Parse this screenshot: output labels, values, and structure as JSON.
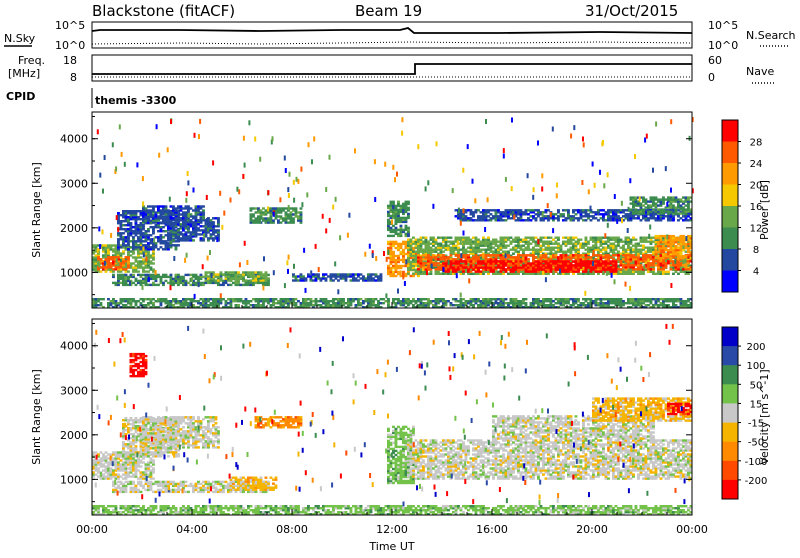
{
  "header": {
    "station": "Blackstone (fitACF)",
    "beam": "Beam 19",
    "date": "31/Oct/2015"
  },
  "left_labels": {
    "nsky": "N.Sky",
    "freq": "Freq.",
    "mhz": "[MHz]",
    "cpid": "CPID"
  },
  "right_labels": {
    "nsearch": "N.Search",
    "nave": "Nave"
  },
  "noise_axis": {
    "left_ticks": [
      "10^5",
      "10^0"
    ],
    "right_ticks": [
      "10^5",
      "10^0"
    ]
  },
  "freq_axis": {
    "left_ticks": [
      "18",
      "8"
    ],
    "right_ticks": [
      "60",
      "0"
    ]
  },
  "cpid_text": "themis -3300",
  "colors": {
    "power": [
      "#0000ff",
      "#2348a0",
      "#3c8c50",
      "#69a84a",
      "#f5c800",
      "#ff9a00",
      "#ff5a00",
      "#ff0000"
    ],
    "velocity": [
      "#0000c8",
      "#2a4aa8",
      "#3c8c50",
      "#73c24a",
      "#c8c8c8",
      "#f5b400",
      "#ff8a00",
      "#ff4a00",
      "#ff0000"
    ]
  },
  "chart_data": [
    {
      "type": "heatmap",
      "name": "power",
      "ylabel": "Slant Range [km]",
      "yticks": [
        "1000",
        "2000",
        "3000",
        "4000"
      ],
      "ylim": [
        200,
        4600
      ],
      "colorbar_label": "Power [dB]",
      "colorbar_ticks": [
        "4",
        "8",
        "12",
        "16",
        "20",
        "24",
        "28"
      ],
      "colorbar_range": [
        0,
        32
      ],
      "regions": [
        {
          "t0": 0.0,
          "t1": 2.5,
          "r0": 1000,
          "r1": 1600,
          "level": 3
        },
        {
          "t0": 0.2,
          "t1": 1.5,
          "r0": 1050,
          "r1": 1350,
          "level": 6
        },
        {
          "t0": 1.0,
          "t1": 3.5,
          "r0": 1500,
          "r1": 2400,
          "level": 1
        },
        {
          "t0": 2.0,
          "t1": 4.5,
          "r0": 2100,
          "r1": 2500,
          "level": 1
        },
        {
          "t0": 3.0,
          "t1": 5.0,
          "r0": 1700,
          "r1": 2200,
          "level": 1
        },
        {
          "t0": 0.8,
          "t1": 7.0,
          "r0": 700,
          "r1": 950,
          "level": 2
        },
        {
          "t0": 4.5,
          "t1": 7.0,
          "r0": 800,
          "r1": 1000,
          "level": 3
        },
        {
          "t0": 6.3,
          "t1": 8.3,
          "r0": 2100,
          "r1": 2450,
          "level": 2
        },
        {
          "t0": 8.0,
          "t1": 11.5,
          "r0": 800,
          "r1": 950,
          "level": 1
        },
        {
          "t0": 11.8,
          "t1": 13.0,
          "r0": 900,
          "r1": 1700,
          "level": 5
        },
        {
          "t0": 11.8,
          "t1": 12.6,
          "r0": 1800,
          "r1": 2600,
          "level": 2
        },
        {
          "t0": 12.6,
          "t1": 24.0,
          "r0": 950,
          "r1": 1800,
          "level": 3
        },
        {
          "t0": 13.0,
          "t1": 24.0,
          "r0": 1050,
          "r1": 1400,
          "level": 6
        },
        {
          "t0": 14.0,
          "t1": 21.0,
          "r0": 1000,
          "r1": 1250,
          "level": 7
        },
        {
          "t0": 14.5,
          "t1": 24.0,
          "r0": 2150,
          "r1": 2400,
          "level": 1
        },
        {
          "t0": 21.5,
          "t1": 24.0,
          "r0": 2300,
          "r1": 2700,
          "level": 2
        },
        {
          "t0": 22.5,
          "t1": 24.0,
          "r0": 1300,
          "r1": 1800,
          "level": 5
        },
        {
          "t0": 0.0,
          "t1": 24.0,
          "r0": 200,
          "r1": 420,
          "level": 2
        }
      ]
    },
    {
      "type": "heatmap",
      "name": "velocity",
      "ylabel": "Slant Range [km]",
      "yticks": [
        "1000",
        "2000",
        "3000",
        "4000"
      ],
      "ylim": [
        200,
        4600
      ],
      "colorbar_label": "Velocity [m s^-1]",
      "colorbar_ticks": [
        "200",
        "100",
        "50",
        "15",
        "-15",
        "-50",
        "-100",
        "-200"
      ],
      "regions": [
        {
          "t0": 0.0,
          "t1": 2.5,
          "r0": 1000,
          "r1": 1600,
          "level": 4
        },
        {
          "t0": 1.2,
          "t1": 3.5,
          "r0": 1500,
          "r1": 2400,
          "level": 4
        },
        {
          "t0": 2.0,
          "t1": 5.0,
          "r0": 1700,
          "r1": 2400,
          "level": 4
        },
        {
          "t0": 1.5,
          "t1": 2.2,
          "r0": 3300,
          "r1": 3800,
          "level": 8
        },
        {
          "t0": 0.8,
          "t1": 7.0,
          "r0": 700,
          "r1": 950,
          "level": 4
        },
        {
          "t0": 5.5,
          "t1": 7.3,
          "r0": 750,
          "r1": 1050,
          "level": 5
        },
        {
          "t0": 6.5,
          "t1": 8.3,
          "r0": 2150,
          "r1": 2400,
          "level": 6
        },
        {
          "t0": 11.8,
          "t1": 12.8,
          "r0": 900,
          "r1": 2200,
          "level": 3
        },
        {
          "t0": 12.6,
          "t1": 24.0,
          "r0": 1000,
          "r1": 1900,
          "level": 4
        },
        {
          "t0": 16.0,
          "t1": 22.5,
          "r0": 1900,
          "r1": 2400,
          "level": 4
        },
        {
          "t0": 20.0,
          "t1": 24.0,
          "r0": 2300,
          "r1": 2800,
          "level": 5
        },
        {
          "t0": 23.0,
          "t1": 24.0,
          "r0": 2450,
          "r1": 2700,
          "level": 8
        },
        {
          "t0": 0.0,
          "t1": 24.0,
          "r0": 200,
          "r1": 420,
          "level": 3
        }
      ]
    }
  ],
  "time_axis": {
    "label": "Time UT",
    "ticks": [
      "00:00",
      "04:00",
      "08:00",
      "12:00",
      "16:00",
      "20:00",
      "00:00"
    ]
  }
}
